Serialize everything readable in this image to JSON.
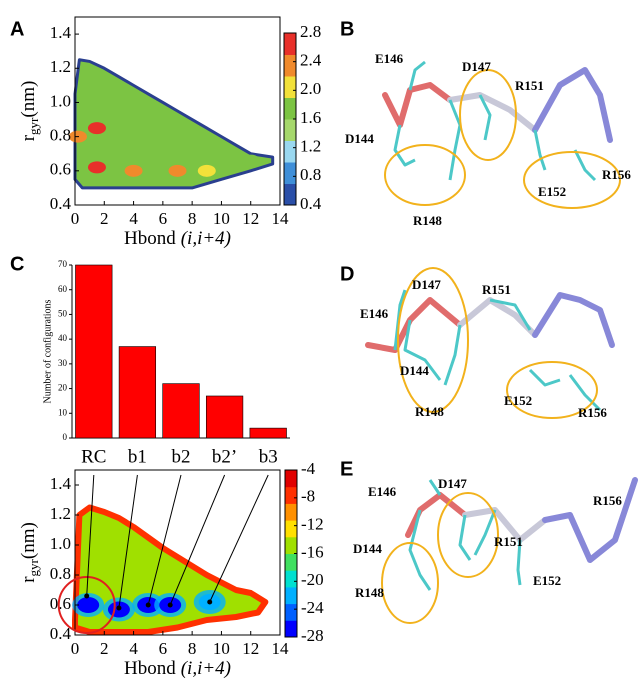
{
  "panel_labels": [
    "A",
    "B",
    "C",
    "D",
    "E"
  ],
  "chart_data": [
    {
      "type": "contour",
      "xlabel": {
        "text": "Hbond",
        "italic": "(i,i+4)"
      },
      "ylabel": {
        "main": "r",
        "sub": "gyr",
        "unit": "(nm)"
      },
      "xlim": [
        0,
        14
      ],
      "xticks": [
        0,
        2,
        4,
        6,
        8,
        10,
        12,
        14
      ],
      "ylim": [
        0.4,
        1.5
      ],
      "yticks": [
        0.4,
        0.6,
        0.8,
        {
          "value": 1,
          "label": "1.0"
        },
        1.2,
        1.4
      ],
      "clim": [
        0.4,
        2.8
      ],
      "cticks": [
        0.4,
        0.8,
        1.2,
        1.6,
        {
          "value": 2,
          "label": "2.0"
        },
        2.4,
        2.8
      ],
      "colorscale": [
        "#2a4fa8",
        "#3f8fd8",
        "#9ad8f0",
        "#a6d86c",
        "#7cc443",
        "#f2e13a",
        "#f08a2c",
        "#e8302a"
      ],
      "outline": {
        "x": [
          0,
          0.3,
          1,
          2,
          3,
          4,
          5,
          6,
          7,
          8,
          9,
          10,
          11,
          12,
          13.5,
          13.5,
          12,
          10,
          8,
          6,
          4,
          2,
          0.5,
          0
        ],
        "y": [
          1.05,
          1.25,
          1.24,
          1.2,
          1.15,
          1.1,
          1.05,
          1.0,
          0.95,
          0.9,
          0.85,
          0.8,
          0.75,
          0.7,
          0.68,
          0.64,
          0.6,
          0.55,
          0.5,
          0.5,
          0.5,
          0.5,
          0.5,
          0.55
        ]
      },
      "hotspots": {
        "x": [
          1.5,
          1.5,
          0.2,
          4,
          7,
          9,
          12
        ],
        "y": [
          0.85,
          0.62,
          0.8,
          0.6,
          0.6,
          0.6,
          0.66
        ],
        "values": [
          2.8,
          2.8,
          2.4,
          2.2,
          2.4,
          2.0,
          1.6
        ]
      }
    },
    {
      "type": "bar",
      "ylabel": "Number of configurations",
      "categories": [
        "RC",
        "b1",
        "b2",
        "b2’",
        "b3"
      ],
      "values": [
        70,
        37,
        22,
        17,
        4
      ],
      "color": "#ff0000",
      "ylim": [
        0,
        70
      ],
      "yticks": [
        0,
        10,
        20,
        30,
        40,
        50,
        60,
        70
      ]
    },
    {
      "type": "contour",
      "xlabel": {
        "text": "Hbond",
        "italic": "(i,i+4)"
      },
      "ylabel": {
        "main": "r",
        "sub": "gyr",
        "unit": "(nm)"
      },
      "xlim": [
        0,
        14
      ],
      "xticks": [
        0,
        2,
        4,
        6,
        8,
        10,
        12,
        14
      ],
      "ylim": [
        0.4,
        1.5
      ],
      "yticks": [
        0.4,
        0.6,
        0.8,
        {
          "value": 1,
          "label": "1.0"
        },
        1.2,
        1.4
      ],
      "clim": [
        -28,
        -4
      ],
      "cticks": [
        -4,
        -8,
        -12,
        -16,
        -20,
        -24,
        -28
      ],
      "colorscale": [
        "#0000ff",
        "#0060ff",
        "#00b0ff",
        "#00e0d0",
        "#40e060",
        "#a0e000",
        "#ffe000",
        "#ff9000",
        "#ff3000",
        "#e00000"
      ],
      "outline": {
        "x": [
          0,
          0.3,
          1,
          2,
          3,
          4,
          5,
          6,
          7,
          8,
          9,
          10,
          11,
          12,
          13,
          12.5,
          11,
          9,
          7,
          5,
          3,
          1,
          0
        ],
        "y": [
          0.5,
          1.2,
          1.25,
          1.22,
          1.18,
          1.12,
          1.05,
          0.98,
          0.92,
          0.86,
          0.8,
          0.75,
          0.7,
          0.68,
          0.62,
          0.55,
          0.52,
          0.5,
          0.45,
          0.42,
          0.42,
          0.42,
          0.45
        ]
      },
      "hotspots": {
        "x": [
          0.9,
          3,
          5,
          6.5,
          9.2
        ],
        "y": [
          0.6,
          0.57,
          0.6,
          0.6,
          0.62
        ],
        "values": [
          -28,
          -28,
          -27,
          -26,
          -22
        ]
      },
      "arrow_targets": {
        "x": [
          0.8,
          3,
          5,
          6.5,
          9.2
        ],
        "y": [
          0.66,
          0.58,
          0.6,
          0.6,
          0.62
        ]
      }
    }
  ],
  "structures": {
    "B": {
      "labels": [
        "E146",
        "D147",
        "R151",
        "D144",
        "E152",
        "R156",
        "R148"
      ]
    },
    "D": {
      "labels": [
        "D147",
        "R151",
        "E146",
        "D144",
        "E152",
        "R148",
        "R156"
      ]
    },
    "E": {
      "labels": [
        "E146",
        "D147",
        "R156",
        "D144",
        "R151",
        "E152",
        "R148"
      ]
    }
  }
}
